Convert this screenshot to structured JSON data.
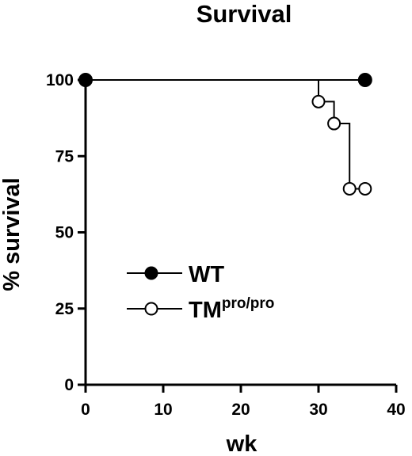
{
  "chart_data": {
    "type": "line",
    "subtype": "kaplan-meier step",
    "title": "Survival",
    "xlabel": "wk",
    "ylabel": "% survival",
    "xlim": [
      0,
      40
    ],
    "ylim": [
      0,
      100
    ],
    "xticks": [
      0,
      10,
      20,
      30,
      40
    ],
    "yticks": [
      0,
      25,
      50,
      75,
      100
    ],
    "grid": false,
    "legend_placement": "lower-left",
    "series": [
      {
        "name": "WT",
        "marker": "filled-circle",
        "color": "#000000",
        "points": [
          {
            "x": 0,
            "y": 100
          },
          {
            "x": 36,
            "y": 100
          }
        ]
      },
      {
        "name_main": "TM",
        "name_sup": "pro/pro",
        "marker": "open-circle",
        "color": "#000000",
        "steps": [
          {
            "x": 30,
            "y": 92.9
          },
          {
            "x": 32,
            "y": 85.7
          },
          {
            "x": 34,
            "y": 64.3
          }
        ],
        "points": [
          {
            "x": 30,
            "y": 92.9
          },
          {
            "x": 32,
            "y": 85.7
          },
          {
            "x": 34,
            "y": 64.3
          },
          {
            "x": 36,
            "y": 64.3
          }
        ]
      }
    ]
  }
}
